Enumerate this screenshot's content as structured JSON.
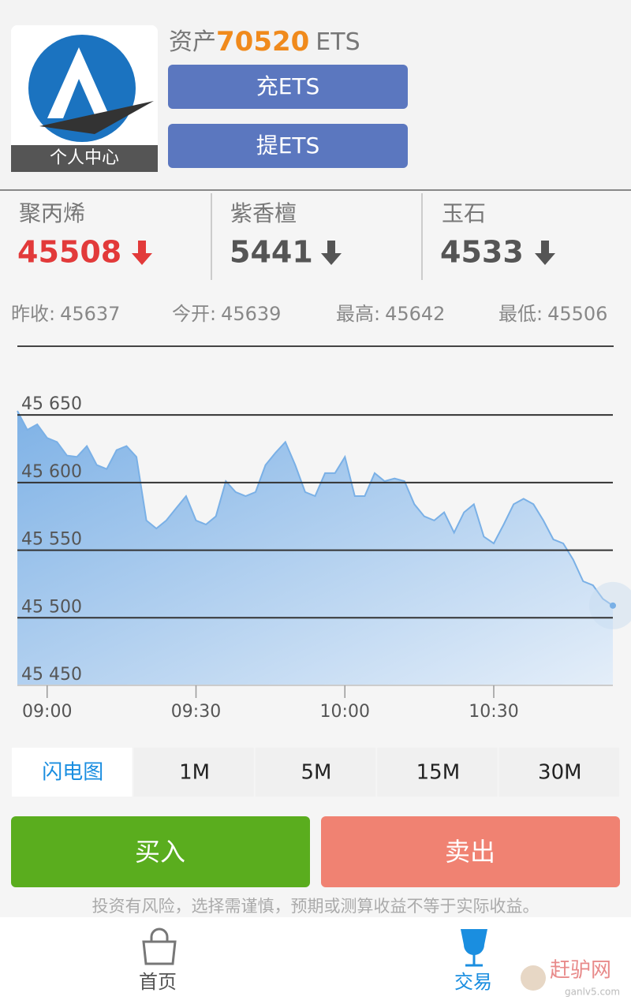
{
  "header": {
    "avatar_label": "个人中心",
    "asset_label": "资产",
    "asset_value": 70520,
    "asset_unit": "ETS",
    "buttons": [
      "充ETS",
      "提ETS"
    ]
  },
  "tickers": [
    {
      "name": "聚丙烯",
      "price": 45508
    },
    {
      "name": "紫香檀",
      "price": 5441
    },
    {
      "name": "玉石",
      "price": 4533
    }
  ],
  "stats": [
    {
      "label": "昨收:",
      "value": 45637
    },
    {
      "label": "今开:",
      "value": 45639
    },
    {
      "label": "最高:",
      "value": 45642
    },
    {
      "label": "最低:",
      "value": 45506
    }
  ],
  "chart_data": {
    "type": "area",
    "x": [
      "08:54",
      "08:56",
      "08:58",
      "09:00",
      "09:02",
      "09:04",
      "09:06",
      "09:08",
      "09:10",
      "09:12",
      "09:14",
      "09:16",
      "09:18",
      "09:20",
      "09:22",
      "09:24",
      "09:26",
      "09:28",
      "09:30",
      "09:32",
      "09:34",
      "09:36",
      "09:38",
      "09:40",
      "09:42",
      "09:44",
      "09:46",
      "09:48",
      "09:50",
      "09:52",
      "09:54",
      "09:56",
      "09:58",
      "10:00",
      "10:02",
      "10:04",
      "10:06",
      "10:08",
      "10:10",
      "10:12",
      "10:14",
      "10:16",
      "10:18",
      "10:20",
      "10:22",
      "10:24",
      "10:26",
      "10:28",
      "10:30",
      "10:32",
      "10:34",
      "10:36",
      "10:38",
      "10:40",
      "10:42",
      "10:44",
      "10:46",
      "10:48",
      "10:50",
      "10:52",
      "10:54"
    ],
    "values": [
      45653,
      45639,
      45643,
      45633,
      45630,
      45620,
      45619,
      45627,
      45613,
      45610,
      45624,
      45627,
      45619,
      45572,
      45566,
      45572,
      45581,
      45590,
      45572,
      45569,
      45575,
      45601,
      45593,
      45590,
      45593,
      45613,
      45622,
      45630,
      45613,
      45593,
      45590,
      45607,
      45607,
      45619,
      45590,
      45590,
      45607,
      45601,
      45603,
      45601,
      45584,
      45575,
      45572,
      45578,
      45563,
      45578,
      45584,
      45560,
      45555,
      45569,
      45584,
      45588,
      45584,
      45572,
      45558,
      45555,
      45543,
      45527,
      45524,
      45514,
      45509
    ],
    "color": "#7ab0e6",
    "xlim": [
      "08:54",
      "10:54"
    ],
    "xticks": [
      "09:00",
      "09:30",
      "10:00",
      "10:30"
    ],
    "ylim": [
      45450,
      45660
    ],
    "yticks": [
      {
        "value": 45450,
        "label": "45 450"
      },
      {
        "value": 45500,
        "label": "45 500"
      },
      {
        "value": 45550,
        "label": "45 550"
      },
      {
        "value": 45600,
        "label": "45 600"
      },
      {
        "value": 45650,
        "label": "45 650"
      }
    ],
    "grid": true
  },
  "periods": [
    "闪电图",
    "1M",
    "5M",
    "15M",
    "30M"
  ],
  "actions": [
    "买入",
    "卖出"
  ],
  "disclaimer": "投资有风险，选择需谨慎，预期或测算收益不等于实际收益。",
  "nav": [
    "首页",
    "交易"
  ],
  "watermark": {
    "brand": "赶驴网",
    "url": "ganlv5.com"
  }
}
